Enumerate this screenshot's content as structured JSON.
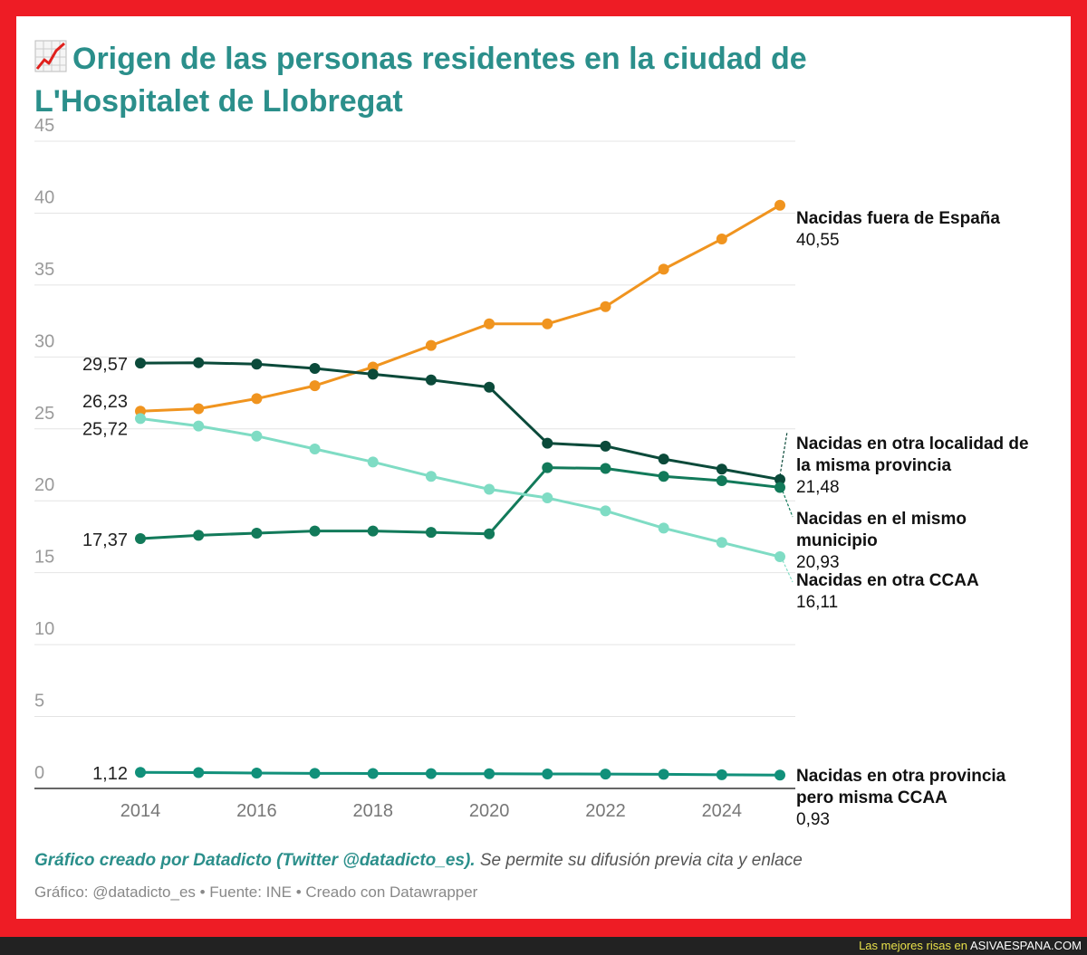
{
  "title": "Origen de las personas residentes en la ciudad de L'Hospitalet de Llobregat",
  "title_icon": "chart-increasing-icon",
  "credit": {
    "strong": "Gráfico creado por Datadicto (Twitter @datadicto_es).",
    "rest": " Se permite su difusión previa cita y enlace"
  },
  "source": "Gráfico: @datadicto_es • Fuente: INE • Creado con Datawrapper",
  "footer": {
    "prefix": "Las mejores risas en",
    "site": "ASIVAESPANA.COM"
  },
  "chart_data": {
    "type": "line",
    "x": [
      2014,
      2015,
      2016,
      2017,
      2018,
      2019,
      2020,
      2021,
      2022,
      2023,
      2024,
      2025
    ],
    "x_ticks": [
      "2014",
      "2016",
      "2018",
      "2020",
      "2022",
      "2024"
    ],
    "y_ticks": [
      "0",
      "5",
      "10",
      "15",
      "20",
      "25",
      "30",
      "35",
      "40",
      "45"
    ],
    "ylim": [
      0,
      45
    ],
    "grid": true,
    "series": [
      {
        "name": "Nacidas fuera de España",
        "color": "#f0941f",
        "start_label": "26,23",
        "end_label": "40,55",
        "values": [
          26.23,
          26.4,
          27.1,
          28.0,
          29.3,
          30.8,
          32.3,
          32.3,
          33.5,
          36.1,
          38.2,
          40.55
        ]
      },
      {
        "name": "Nacidas en otra localidad de la misma provincia",
        "color": "#0b4a3a",
        "start_label": "29,57",
        "end_label": "21,48",
        "values": [
          29.57,
          29.6,
          29.5,
          29.2,
          28.8,
          28.4,
          27.9,
          24.0,
          23.8,
          22.9,
          22.2,
          21.48
        ]
      },
      {
        "name": "Nacidas en el mismo municipio",
        "color": "#127a5a",
        "start_label": "17,37",
        "end_label": "20,93",
        "values": [
          17.37,
          17.6,
          17.75,
          17.9,
          17.9,
          17.8,
          17.7,
          22.3,
          22.25,
          21.7,
          21.4,
          20.93
        ]
      },
      {
        "name": "Nacidas en otra CCAA",
        "color": "#7fdcc4",
        "start_label": "25,72",
        "end_label": "16,11",
        "values": [
          25.72,
          25.2,
          24.5,
          23.6,
          22.7,
          21.7,
          20.8,
          20.2,
          19.3,
          18.1,
          17.1,
          16.11
        ]
      },
      {
        "name": "Nacidas en otra provincia pero misma CCAA",
        "color": "#11907a",
        "start_label": "1,12",
        "end_label": "0,93",
        "values": [
          1.12,
          1.1,
          1.07,
          1.05,
          1.04,
          1.03,
          1.02,
          1.01,
          1.0,
          0.98,
          0.95,
          0.93
        ]
      }
    ]
  }
}
